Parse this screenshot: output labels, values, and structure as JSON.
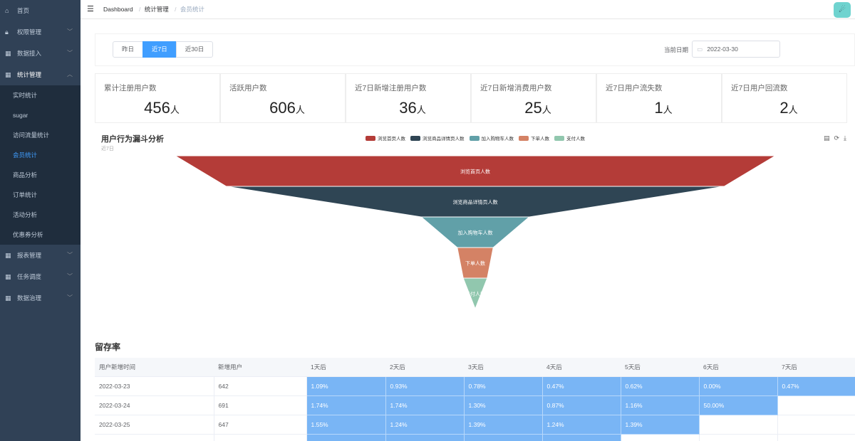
{
  "sidebar": {
    "items": [
      {
        "label": "首页",
        "icon": "dashboard-icon",
        "glyph": "⌂",
        "caret": false
      },
      {
        "label": "权限管理",
        "icon": "lock-icon",
        "glyph": "🔒︎",
        "caret": true
      },
      {
        "label": "数据接入",
        "icon": "grid-icon",
        "glyph": "▦",
        "caret": true
      },
      {
        "label": "统计管理",
        "icon": "grid-icon",
        "glyph": "▦",
        "caret": true,
        "open": true
      }
    ],
    "submenu": [
      {
        "label": "实时统计"
      },
      {
        "label": "sugar"
      },
      {
        "label": "访问流量统计"
      },
      {
        "label": "会员统计",
        "active": true
      },
      {
        "label": "商品分析"
      },
      {
        "label": "订单统计"
      },
      {
        "label": "活动分析"
      },
      {
        "label": "优惠券分析"
      }
    ],
    "items_after": [
      {
        "label": "报表管理",
        "icon": "grid-icon",
        "glyph": "▦",
        "caret": true
      },
      {
        "label": "任务调度",
        "icon": "grid-icon",
        "glyph": "▦",
        "caret": true
      },
      {
        "label": "数据治理",
        "icon": "grid-icon",
        "glyph": "▦",
        "caret": true
      }
    ]
  },
  "header": {
    "breadcrumb": [
      "Dashboard",
      "统计管理",
      "会员统计"
    ]
  },
  "filter": {
    "buttons": [
      "昨日",
      "近7日",
      "近30日"
    ],
    "active_index": 1,
    "date_label": "当前日期",
    "date_value": "2022-03-30"
  },
  "stats": [
    {
      "label": "累计注册用户数",
      "value": "456",
      "unit": "人"
    },
    {
      "label": "活跃用户数",
      "value": "606",
      "unit": "人"
    },
    {
      "label": "近7日新增注册用户数",
      "value": "36",
      "unit": "人"
    },
    {
      "label": "近7日新增消费用户数",
      "value": "25",
      "unit": "人"
    },
    {
      "label": "近7日用户流失数",
      "value": "1",
      "unit": "人"
    },
    {
      "label": "近7日用户回流数",
      "value": "2",
      "unit": "人"
    }
  ],
  "chart_data": {
    "type": "funnel",
    "title": "用户行为漏斗分析",
    "subtitle": "近7日",
    "stages": [
      {
        "name": "浏览首页人数",
        "value": 100,
        "color": "#b43c38"
      },
      {
        "name": "浏览商品详情页人数",
        "value": 83,
        "color": "#2f4554"
      },
      {
        "name": "加入购物车人数",
        "value": 18,
        "color": "#61a0a8"
      },
      {
        "name": "下单人数",
        "value": 6,
        "color": "#d48265"
      },
      {
        "name": "支付人数",
        "value": 4,
        "color": "#91c7ae"
      }
    ],
    "legend_position": "top-center"
  },
  "retention": {
    "title": "留存率",
    "headers": [
      "用户新增时间",
      "新增用户",
      "1天后",
      "2天后",
      "3天后",
      "4天后",
      "5天后",
      "6天后",
      "7天后"
    ],
    "rows": [
      {
        "date": "2022-03-23",
        "new_users": "642",
        "rates": [
          "1.09%",
          "0.93%",
          "0.78%",
          "0.47%",
          "0.62%",
          "0.00%",
          "0.47%"
        ]
      },
      {
        "date": "2022-03-24",
        "new_users": "691",
        "rates": [
          "1.74%",
          "1.74%",
          "1.30%",
          "0.87%",
          "1.16%",
          "50.00%"
        ]
      },
      {
        "date": "2022-03-25",
        "new_users": "647",
        "rates": [
          "1.55%",
          "1.24%",
          "1.39%",
          "1.24%",
          "1.39%"
        ]
      },
      {
        "date": "",
        "new_users": "",
        "rates": [
          "",
          "",
          "",
          ""
        ]
      }
    ]
  }
}
